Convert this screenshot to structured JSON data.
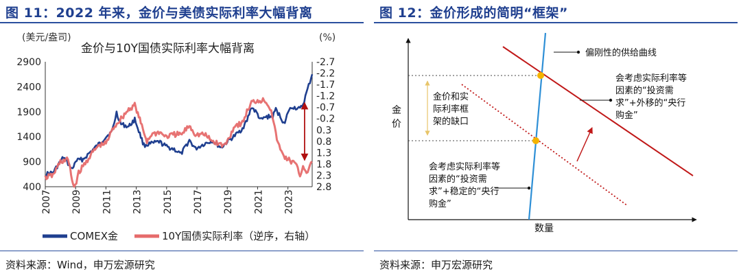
{
  "left": {
    "title": "图 11：2022 年来，金价与美债实际利率大幅背离",
    "source": "资料来源：Wind，申万宏源研究",
    "chart_data": {
      "type": "line",
      "title": "金价与10Y国债实际利率大幅背离",
      "ylabel_left": "(美元/盎司)",
      "ylabel_right": "(%)",
      "x_ticks": [
        "2007",
        "2009",
        "2011",
        "2013",
        "2015",
        "2017",
        "2019",
        "2021",
        "2023"
      ],
      "xlim": [
        2007.0,
        2024.6
      ],
      "y_left_ticks": [
        "2900",
        "2400",
        "1900",
        "1400",
        "900",
        "400"
      ],
      "ylim_left": [
        400,
        2900
      ],
      "y_right_ticks": [
        "-2.7",
        "-2.2",
        "-1.7",
        "-1.2",
        "-0.7",
        "-0.2",
        "0.3",
        "0.8",
        "1.3",
        "1.8",
        "2.3",
        "2.8"
      ],
      "ylim_right_inverted": [
        -2.7,
        2.8
      ],
      "grid": false,
      "legend_position": "bottom",
      "series": [
        {
          "name": "COMEX金",
          "axis": "left",
          "color": "#1f3f8f",
          "x": [
            2007.0,
            2007.5,
            2008.0,
            2008.2,
            2008.8,
            2009.0,
            2009.5,
            2010.0,
            2010.5,
            2011.0,
            2011.4,
            2011.7,
            2012.0,
            2012.5,
            2012.9,
            2013.3,
            2013.5,
            2014.0,
            2014.5,
            2015.0,
            2015.5,
            2015.95,
            2016.5,
            2016.9,
            2017.5,
            2018.0,
            2018.6,
            2019.0,
            2019.5,
            2019.8,
            2020.0,
            2020.3,
            2020.6,
            2021.0,
            2021.2,
            2021.6,
            2022.0,
            2022.2,
            2022.8,
            2023.0,
            2023.3,
            2023.8,
            2024.0,
            2024.3,
            2024.6
          ],
          "values": [
            650,
            680,
            900,
            990,
            740,
            920,
            950,
            1100,
            1240,
            1400,
            1500,
            1880,
            1650,
            1600,
            1750,
            1400,
            1230,
            1260,
            1300,
            1200,
            1150,
            1050,
            1330,
            1160,
            1260,
            1320,
            1180,
            1300,
            1420,
            1500,
            1570,
            1720,
            2000,
            1850,
            1730,
            1800,
            1800,
            1950,
            1650,
            1900,
            2000,
            1950,
            2050,
            2350,
            2650
          ]
        },
        {
          "name": "10Y国债实际利率（逆序，右轴）",
          "axis": "right",
          "color": "#e66b6b",
          "x": [
            2007.0,
            2007.5,
            2008.0,
            2008.5,
            2008.9,
            2009.2,
            2010.0,
            2010.5,
            2011.0,
            2011.5,
            2012.0,
            2012.5,
            2012.9,
            2013.3,
            2013.7,
            2014.0,
            2014.5,
            2015.0,
            2015.5,
            2016.0,
            2016.5,
            2016.9,
            2017.5,
            2018.0,
            2018.8,
            2019.0,
            2019.5,
            2020.0,
            2020.3,
            2020.6,
            2021.0,
            2021.5,
            2021.9,
            2022.2,
            2022.5,
            2022.8,
            2023.0,
            2023.5,
            2023.8,
            2024.0,
            2024.3,
            2024.6
          ],
          "values": [
            2.4,
            2.3,
            1.7,
            1.6,
            2.9,
            2.2,
            1.4,
            1.0,
            0.9,
            0.2,
            -0.2,
            -0.6,
            -0.8,
            0.0,
            0.8,
            0.5,
            0.4,
            0.6,
            0.5,
            0.5,
            0.1,
            0.5,
            0.5,
            0.8,
            1.0,
            0.8,
            0.1,
            0.0,
            -0.5,
            -0.9,
            -1.0,
            -1.0,
            -0.6,
            0.5,
            1.2,
            1.5,
            1.6,
            1.8,
            2.3,
            1.9,
            2.2,
            1.7
          ]
        }
      ]
    },
    "annotation": "double-headed arrow marking the gap in 2024"
  },
  "right": {
    "title": "图 12：金价形成的简明“框架”",
    "source": "资料来源：申万宏源研究",
    "diagram": {
      "y_axis_label": "金价",
      "x_axis_label": "数量",
      "supply_label": "偏刚性的供给曲线",
      "demand_outer_label": "会考虑实际利率等因素的“投资需求”+外移的“央行购金”",
      "demand_inner_label": "会考虑实际利率等因素的“投资需求”+稳定的“央行购金”",
      "gap_label": "金价和实际利率框架的缺口",
      "colors": {
        "supply": "#2e8fd6",
        "demand": "#c01818",
        "equilibrium": "#f4b400",
        "gap_arrow": "#e8c56a"
      }
    }
  }
}
